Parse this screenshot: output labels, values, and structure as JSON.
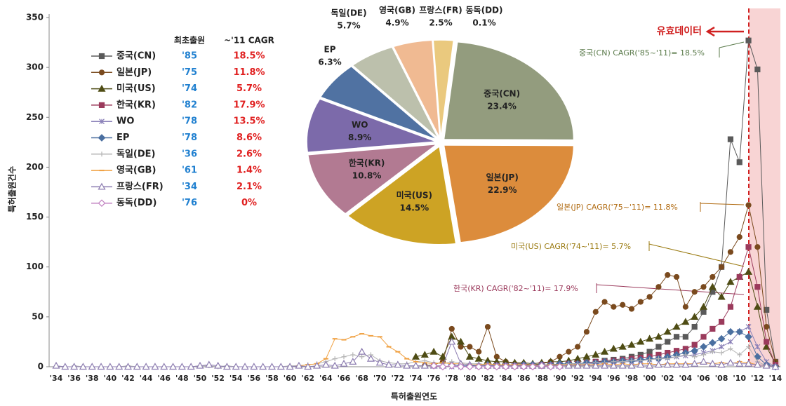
{
  "chart_data": [
    {
      "type": "line",
      "ylabel": "특허출원건수",
      "xlabel": "특허출원연도",
      "ylim": [
        0,
        350
      ],
      "yticks": [
        0,
        50,
        100,
        150,
        200,
        250,
        300,
        350
      ],
      "categories": [
        "'34",
        null,
        "'36",
        null,
        "'38",
        null,
        "'40",
        null,
        "'42",
        null,
        "'44",
        null,
        "'46",
        null,
        "'48",
        null,
        "'50",
        null,
        "'52",
        null,
        "'54",
        null,
        "'56",
        null,
        "'58",
        null,
        "'60",
        null,
        "'62",
        null,
        "'64",
        null,
        "'66",
        null,
        "'68",
        null,
        "'70",
        null,
        "'72",
        null,
        "'74",
        null,
        "'76",
        null,
        "'78",
        null,
        "'80",
        null,
        "'82",
        null,
        "'84",
        null,
        "'86",
        null,
        "'88",
        null,
        "'90",
        null,
        "'92",
        null,
        "'94",
        null,
        "'96",
        null,
        "'98",
        null,
        "'00",
        null,
        "'02",
        null,
        "'04",
        null,
        "'06",
        null,
        "'08",
        null,
        "'10",
        null,
        "'12",
        null,
        "'14"
      ],
      "legend_headers": [
        "최초출원",
        "~'11 CAGR"
      ],
      "series": [
        {
          "name": "중국(CN)",
          "first_filing": "'85",
          "cagr": "18.5%",
          "color": "#5a5a5a",
          "marker": "square",
          "values": [
            null,
            null,
            null,
            null,
            null,
            null,
            null,
            null,
            null,
            null,
            null,
            null,
            null,
            null,
            null,
            null,
            null,
            null,
            null,
            null,
            null,
            null,
            null,
            null,
            null,
            null,
            null,
            null,
            null,
            null,
            null,
            null,
            null,
            null,
            null,
            null,
            null,
            null,
            null,
            null,
            null,
            null,
            null,
            null,
            null,
            null,
            null,
            null,
            null,
            null,
            null,
            1,
            1,
            1,
            1,
            2,
            2,
            3,
            3,
            4,
            5,
            6,
            7,
            8,
            10,
            12,
            15,
            20,
            25,
            30,
            30,
            40,
            55,
            75,
            100,
            228,
            205,
            327,
            298,
            57,
            5
          ]
        },
        {
          "name": "일본(JP)",
          "first_filing": "'75",
          "cagr": "11.8%",
          "color": "#7a4a1e",
          "marker": "circle",
          "values": [
            null,
            null,
            null,
            null,
            null,
            null,
            null,
            null,
            null,
            null,
            null,
            null,
            null,
            null,
            null,
            null,
            null,
            null,
            null,
            null,
            null,
            null,
            null,
            null,
            null,
            null,
            null,
            null,
            null,
            null,
            null,
            null,
            null,
            null,
            null,
            null,
            null,
            null,
            null,
            null,
            null,
            1,
            2,
            5,
            38,
            20,
            20,
            15,
            40,
            10,
            5,
            3,
            3,
            2,
            3,
            5,
            10,
            15,
            20,
            35,
            55,
            65,
            60,
            62,
            58,
            65,
            70,
            80,
            92,
            90,
            60,
            75,
            80,
            90,
            100,
            115,
            130,
            162,
            120,
            40,
            5
          ]
        },
        {
          "name": "미국(US)",
          "first_filing": "'74",
          "cagr": "5.7%",
          "color": "#4e4c14",
          "marker": "triangle",
          "values": [
            null,
            null,
            null,
            null,
            null,
            null,
            null,
            null,
            null,
            null,
            null,
            null,
            null,
            null,
            null,
            null,
            null,
            null,
            null,
            null,
            null,
            null,
            null,
            null,
            null,
            null,
            null,
            null,
            null,
            null,
            null,
            null,
            null,
            null,
            null,
            null,
            null,
            null,
            null,
            null,
            10,
            12,
            15,
            10,
            30,
            25,
            10,
            8,
            6,
            5,
            5,
            4,
            4,
            3,
            4,
            5,
            5,
            6,
            8,
            10,
            12,
            15,
            18,
            20,
            22,
            25,
            28,
            30,
            35,
            40,
            45,
            50,
            60,
            80,
            70,
            85,
            90,
            95,
            60,
            20,
            3
          ]
        },
        {
          "name": "한국(KR)",
          "first_filing": "'82",
          "cagr": "17.9%",
          "color": "#9b3a5c",
          "marker": "square",
          "values": [
            null,
            null,
            null,
            null,
            null,
            null,
            null,
            null,
            null,
            null,
            null,
            null,
            null,
            null,
            null,
            null,
            null,
            null,
            null,
            null,
            null,
            null,
            null,
            null,
            null,
            null,
            null,
            null,
            null,
            null,
            null,
            null,
            null,
            null,
            null,
            null,
            null,
            null,
            null,
            null,
            null,
            null,
            null,
            null,
            null,
            null,
            null,
            null,
            1,
            1,
            1,
            1,
            1,
            1,
            2,
            2,
            2,
            3,
            3,
            4,
            5,
            5,
            6,
            7,
            8,
            9,
            10,
            12,
            14,
            16,
            18,
            22,
            30,
            38,
            45,
            60,
            90,
            120,
            80,
            25,
            2
          ]
        },
        {
          "name": "WO",
          "first_filing": "'78",
          "cagr": "13.5%",
          "color": "#8a80b8",
          "marker": "star",
          "values": [
            null,
            null,
            null,
            null,
            null,
            null,
            null,
            null,
            null,
            null,
            null,
            null,
            null,
            null,
            null,
            null,
            null,
            null,
            null,
            null,
            null,
            null,
            null,
            null,
            null,
            null,
            null,
            null,
            null,
            null,
            null,
            null,
            null,
            null,
            null,
            null,
            null,
            null,
            null,
            null,
            null,
            null,
            null,
            null,
            0,
            0,
            1,
            1,
            1,
            1,
            1,
            1,
            1,
            1,
            1,
            1,
            2,
            2,
            2,
            3,
            3,
            4,
            4,
            5,
            5,
            6,
            7,
            8,
            9,
            10,
            11,
            12,
            14,
            16,
            20,
            25,
            35,
            40,
            20,
            5,
            0
          ]
        },
        {
          "name": "EP",
          "first_filing": "'78",
          "cagr": "8.6%",
          "color": "#4a6fa0",
          "marker": "diamond",
          "values": [
            null,
            null,
            null,
            null,
            null,
            null,
            null,
            null,
            null,
            null,
            null,
            null,
            null,
            null,
            null,
            null,
            null,
            null,
            null,
            null,
            null,
            null,
            null,
            null,
            null,
            null,
            null,
            null,
            null,
            null,
            null,
            null,
            null,
            null,
            null,
            null,
            null,
            null,
            null,
            null,
            null,
            null,
            null,
            null,
            2,
            1,
            1,
            1,
            2,
            1,
            1,
            1,
            2,
            2,
            2,
            2,
            3,
            3,
            3,
            4,
            4,
            5,
            5,
            6,
            6,
            7,
            8,
            8,
            10,
            12,
            14,
            16,
            20,
            24,
            28,
            35,
            35,
            30,
            10,
            2,
            0
          ]
        },
        {
          "name": "독일(DE)",
          "first_filing": "'36",
          "cagr": "2.6%",
          "color": "#b4b4b4",
          "marker": "plus",
          "values": [
            null,
            null,
            1,
            0,
            0,
            0,
            0,
            0,
            1,
            0,
            0,
            0,
            0,
            0,
            0,
            0,
            1,
            1,
            0,
            1,
            0,
            0,
            0,
            0,
            0,
            0,
            1,
            1,
            2,
            3,
            5,
            8,
            10,
            12,
            10,
            12,
            6,
            4,
            3,
            3,
            5,
            6,
            4,
            3,
            5,
            4,
            3,
            3,
            2,
            2,
            2,
            2,
            2,
            1,
            2,
            2,
            2,
            3,
            3,
            3,
            4,
            4,
            5,
            5,
            6,
            6,
            7,
            8,
            8,
            10,
            12,
            10,
            12,
            15,
            14,
            18,
            12,
            20,
            5,
            1,
            0
          ]
        },
        {
          "name": "영국(GB)",
          "first_filing": "'61",
          "cagr": "1.4%",
          "color": "#f0a040",
          "marker": "dash",
          "values": [
            null,
            null,
            null,
            null,
            null,
            null,
            null,
            null,
            null,
            null,
            null,
            null,
            null,
            null,
            null,
            null,
            null,
            null,
            null,
            null,
            null,
            null,
            null,
            null,
            null,
            null,
            null,
            1,
            2,
            3,
            8,
            28,
            27,
            30,
            33,
            31,
            30,
            20,
            15,
            8,
            5,
            4,
            3,
            4,
            3,
            3,
            2,
            2,
            3,
            2,
            2,
            2,
            2,
            2,
            1,
            2,
            2,
            2,
            2,
            2,
            2,
            3,
            2,
            3,
            2,
            3,
            3,
            2,
            3,
            3,
            3,
            3,
            4,
            3,
            4,
            3,
            5,
            4,
            2,
            1,
            0
          ]
        },
        {
          "name": "프랑스(FR)",
          "first_filing": "'34",
          "cagr": "2.1%",
          "color": "#8c7cb0",
          "marker": "triangle-open",
          "values": [
            1,
            0,
            0,
            0,
            0,
            0,
            0,
            0,
            0,
            0,
            0,
            0,
            0,
            0,
            0,
            0,
            1,
            2,
            1,
            0,
            0,
            0,
            0,
            0,
            0,
            0,
            0,
            1,
            0,
            1,
            2,
            1,
            3,
            5,
            15,
            8,
            4,
            2,
            2,
            1,
            1,
            1,
            1,
            1,
            25,
            3,
            2,
            1,
            1,
            1,
            1,
            1,
            1,
            1,
            1,
            1,
            1,
            1,
            1,
            1,
            1,
            1,
            1,
            1,
            1,
            2,
            1,
            2,
            2,
            2,
            2,
            3,
            5,
            3,
            2,
            4,
            3,
            3,
            2,
            1,
            0
          ]
        },
        {
          "name": "동독(DD)",
          "first_filing": "'76",
          "cagr": "0%",
          "color": "#c080c0",
          "marker": "diamond-open",
          "values": [
            null,
            null,
            null,
            null,
            null,
            null,
            null,
            null,
            null,
            null,
            null,
            null,
            null,
            null,
            null,
            null,
            null,
            null,
            null,
            null,
            null,
            null,
            null,
            null,
            null,
            null,
            null,
            null,
            null,
            null,
            null,
            null,
            null,
            null,
            null,
            null,
            null,
            null,
            null,
            null,
            null,
            null,
            1,
            0,
            1,
            0,
            0,
            0,
            0,
            0,
            0,
            0,
            0,
            0,
            1,
            0,
            0,
            null,
            null,
            null,
            null,
            null,
            null,
            null,
            null,
            null,
            null,
            null,
            null,
            null,
            null,
            null,
            null,
            null,
            null,
            null,
            null,
            null,
            null,
            null,
            null
          ]
        }
      ],
      "annotations": [
        "유효데이터",
        "중국(CN) CAGR('85~'11)= 18.5%",
        "일본(JP) CAGR('75~'11)= 11.8%",
        "미국(US) CAGR('74~'11)= 5.7%",
        "한국(KR) CAGR('82~'11)= 17.9%"
      ]
    },
    {
      "type": "pie",
      "categories": [
        "중국(CN)",
        "일본(JP)",
        "미국(US)",
        "한국(KR)",
        "WO",
        "EP",
        "독일(DE)",
        "영국(GB)",
        "프랑스(FR)",
        "동독(DD)"
      ],
      "values": [
        23.4,
        22.9,
        14.5,
        10.8,
        8.9,
        6.3,
        5.7,
        4.9,
        2.5,
        0.1
      ],
      "value_labels": [
        "23.4%",
        "22.9%",
        "14.5%",
        "10.8%",
        "8.9%",
        "6.3%",
        "5.7%",
        "4.9%",
        "2.5%",
        "0.1%"
      ],
      "colors": [
        "#939c7e",
        "#dc8c3c",
        "#cda324",
        "#b27a92",
        "#7c6aaa",
        "#5072a2",
        "#bcc0ac",
        "#f0ba92",
        "#eac97e",
        "#c8c8c8"
      ]
    }
  ]
}
